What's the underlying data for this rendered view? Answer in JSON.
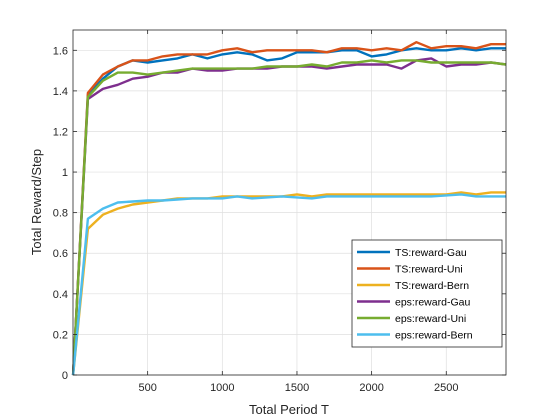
{
  "chart_data": {
    "type": "line",
    "title": "",
    "xlabel": "Total Period T",
    "ylabel": "Total Reward/Step",
    "xlim": [
      0,
      2900
    ],
    "ylim": [
      0,
      1.7
    ],
    "xticks": [
      500,
      1000,
      1500,
      2000,
      2500
    ],
    "xtick_labels": [
      "500",
      "1000",
      "1500",
      "2000",
      "2500"
    ],
    "yticks": [
      0,
      0.2,
      0.4,
      0.6,
      0.8,
      1.0,
      1.2,
      1.4,
      1.6
    ],
    "ytick_labels": [
      "0",
      "0.2",
      "0.4",
      "0.6",
      "0.8",
      "1",
      "1.2",
      "1.4",
      "1.6"
    ],
    "grid": true,
    "legend_position": "lower-right",
    "x": [
      1,
      100,
      200,
      300,
      400,
      500,
      600,
      700,
      800,
      900,
      1000,
      1100,
      1200,
      1300,
      1400,
      1500,
      1600,
      1700,
      1800,
      1900,
      2000,
      2100,
      2200,
      2300,
      2400,
      2500,
      2600,
      2700,
      2800,
      2900
    ],
    "series": [
      {
        "name": "TS:reward-Gau",
        "color": "#0072BD",
        "values": [
          0.0,
          1.38,
          1.46,
          1.52,
          1.55,
          1.54,
          1.55,
          1.56,
          1.58,
          1.56,
          1.58,
          1.59,
          1.58,
          1.55,
          1.56,
          1.59,
          1.59,
          1.59,
          1.6,
          1.6,
          1.57,
          1.58,
          1.6,
          1.61,
          1.6,
          1.6,
          1.61,
          1.6,
          1.61,
          1.61
        ]
      },
      {
        "name": "TS:reward-Uni",
        "color": "#D95319",
        "values": [
          0.0,
          1.39,
          1.48,
          1.52,
          1.55,
          1.55,
          1.57,
          1.58,
          1.58,
          1.58,
          1.6,
          1.61,
          1.59,
          1.6,
          1.6,
          1.6,
          1.6,
          1.59,
          1.61,
          1.61,
          1.6,
          1.61,
          1.6,
          1.64,
          1.61,
          1.62,
          1.62,
          1.61,
          1.63,
          1.63
        ]
      },
      {
        "name": "TS:reward-Bern",
        "color": "#EDB120",
        "values": [
          0.0,
          0.72,
          0.79,
          0.82,
          0.84,
          0.85,
          0.86,
          0.87,
          0.87,
          0.87,
          0.88,
          0.88,
          0.88,
          0.88,
          0.88,
          0.89,
          0.88,
          0.89,
          0.89,
          0.89,
          0.89,
          0.89,
          0.89,
          0.89,
          0.89,
          0.89,
          0.9,
          0.89,
          0.9,
          0.9
        ]
      },
      {
        "name": "eps:reward-Gau",
        "color": "#7E2F8E",
        "values": [
          0.0,
          1.36,
          1.41,
          1.43,
          1.46,
          1.47,
          1.49,
          1.49,
          1.51,
          1.5,
          1.5,
          1.51,
          1.51,
          1.51,
          1.52,
          1.52,
          1.52,
          1.51,
          1.52,
          1.53,
          1.53,
          1.53,
          1.51,
          1.55,
          1.56,
          1.52,
          1.53,
          1.53,
          1.54,
          1.53
        ]
      },
      {
        "name": "eps:reward-Uni",
        "color": "#77AC30",
        "values": [
          0.0,
          1.37,
          1.45,
          1.49,
          1.49,
          1.48,
          1.49,
          1.5,
          1.51,
          1.51,
          1.51,
          1.51,
          1.51,
          1.52,
          1.52,
          1.52,
          1.53,
          1.52,
          1.54,
          1.54,
          1.55,
          1.54,
          1.55,
          1.55,
          1.54,
          1.54,
          1.54,
          1.54,
          1.54,
          1.53
        ]
      },
      {
        "name": "eps:reward-Bern",
        "color": "#4DBEEE",
        "values": [
          0.0,
          0.77,
          0.82,
          0.85,
          0.855,
          0.86,
          0.86,
          0.865,
          0.87,
          0.87,
          0.87,
          0.88,
          0.87,
          0.875,
          0.88,
          0.875,
          0.87,
          0.88,
          0.88,
          0.88,
          0.88,
          0.88,
          0.88,
          0.88,
          0.88,
          0.885,
          0.89,
          0.88,
          0.88,
          0.88
        ]
      }
    ]
  }
}
